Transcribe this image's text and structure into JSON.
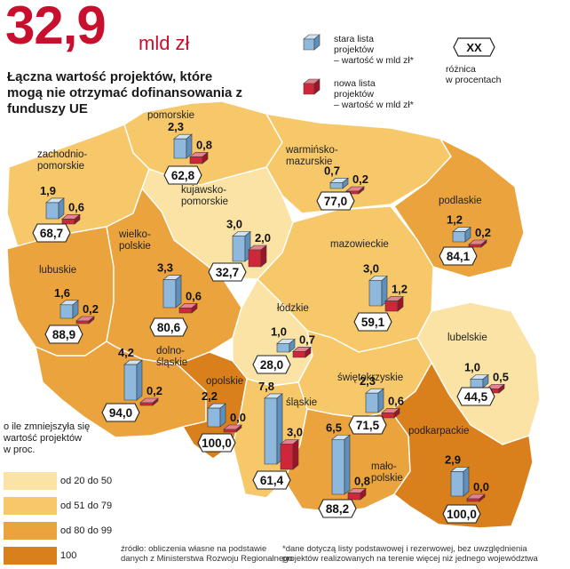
{
  "header": {
    "big_value": "32,9",
    "big_unit": "mld zł",
    "subtitle": "Łączna wartość projektów, które mogą nie otrzymać dofinansowania z funduszy UE"
  },
  "legend": {
    "old_label": "stara lista\nprojektów\n– wartość w mld zł*",
    "new_label": "nowa lista\nprojektów\n– wartość w mld zł*",
    "diff_symbol": "XX",
    "diff_label": "różnica\nw procentach"
  },
  "colors": {
    "old_bar": "#8fb8dd",
    "new_bar": "#d0263a",
    "class_20_50": "#fbe3a5",
    "class_51_79": "#f6c869",
    "class_80_99": "#eaa33d",
    "class_100": "#d9801c"
  },
  "scale": {
    "title": "o ile zmniejszyła się\nwartość projektów\nw proc.",
    "items": [
      {
        "label": "od 20 do 50",
        "color": "#fbe3a5"
      },
      {
        "label": "od 51 do 79",
        "color": "#f6c869"
      },
      {
        "label": "od 80 do 99",
        "color": "#eaa33d"
      },
      {
        "label": "100",
        "color": "#d9801c"
      }
    ]
  },
  "footnotes": {
    "source": "źródło: obliczenia własne na podstawie\ndanych z Ministerstwa Rozwoju Regionalnego",
    "note": "*dane dotyczą listy podstawowej i rezerwowej, bez uwzględnienia\nprojektów realizowanych na terenie więcej niż jednego województwa"
  },
  "chart_data": {
    "type": "bar",
    "title": "32,9 mld zł",
    "subtitle": "Łączna wartość projektów, które mogą nie otrzymać dofinansowania z funduszy UE",
    "series": [
      {
        "name": "stara lista projektów – wartość w mld zł*",
        "values": [
          2.3,
          1.9,
          0.7,
          1.2,
          3.0,
          1.6,
          3.3,
          3.0,
          1.0,
          4.2,
          1.0,
          2.2,
          7.8,
          2.3,
          6.5,
          2.9
        ]
      },
      {
        "name": "nowa lista projektów – wartość w mld zł*",
        "values": [
          0.8,
          0.6,
          0.2,
          0.2,
          2.0,
          0.2,
          0.6,
          1.2,
          0.7,
          0.2,
          0.5,
          0.0,
          3.0,
          0.6,
          0.8,
          0.0
        ]
      }
    ],
    "categories": [
      "pomorskie",
      "zachodnio-pomorskie",
      "warmińsko-mazurskie",
      "podlaskie",
      "kujawsko-pomorskie",
      "lubuskie",
      "wielko-polskie",
      "mazowieckie",
      "łódzkie",
      "dolno-śląskie",
      "lubelskie",
      "opolskie",
      "śląskie",
      "świętokrzyskie",
      "mało-polskie",
      "podkarpackie"
    ],
    "diff_percent": [
      "62,8",
      "68,7",
      "77,0",
      "84,1",
      "32,7",
      "88,9",
      "80,6",
      "59,1",
      "28,0",
      "94,0",
      "44,5",
      "100,0",
      "61,4",
      "71,5",
      "88,2",
      "100,0"
    ],
    "regions": [
      {
        "name": "pomorskie",
        "old": "2,3",
        "new": "0,8",
        "diff": "62,8",
        "class": "class_51_79"
      },
      {
        "name": "zachodnio-pomorskie",
        "old": "1,9",
        "new": "0,6",
        "diff": "68,7",
        "class": "class_51_79"
      },
      {
        "name": "warmińsko-mazurskie",
        "old": "0,7",
        "new": "0,2",
        "diff": "77,0",
        "class": "class_51_79"
      },
      {
        "name": "podlaskie",
        "old": "1,2",
        "new": "0,2",
        "diff": "84,1",
        "class": "class_80_99"
      },
      {
        "name": "kujawsko-pomorskie",
        "old": "3,0",
        "new": "2,0",
        "diff": "32,7",
        "class": "class_20_50"
      },
      {
        "name": "lubuskie",
        "old": "1,6",
        "new": "0,2",
        "diff": "88,9",
        "class": "class_80_99"
      },
      {
        "name": "wielko-polskie",
        "old": "3,3",
        "new": "0,6",
        "diff": "80,6",
        "class": "class_80_99"
      },
      {
        "name": "mazowieckie",
        "old": "3,0",
        "new": "1,2",
        "diff": "59,1",
        "class": "class_51_79"
      },
      {
        "name": "łódzkie",
        "old": "1,0",
        "new": "0,7",
        "diff": "28,0",
        "class": "class_20_50"
      },
      {
        "name": "dolno-śląskie",
        "old": "4,2",
        "new": "0,2",
        "diff": "94,0",
        "class": "class_80_99"
      },
      {
        "name": "lubelskie",
        "old": "1,0",
        "new": "0,5",
        "diff": "44,5",
        "class": "class_20_50"
      },
      {
        "name": "opolskie",
        "old": "2,2",
        "new": "0,0",
        "diff": "100,0",
        "class": "class_100"
      },
      {
        "name": "śląskie",
        "old": "7,8",
        "new": "3,0",
        "diff": "61,4",
        "class": "class_51_79"
      },
      {
        "name": "świętokrzyskie",
        "old": "2,3",
        "new": "0,6",
        "diff": "71,5",
        "class": "class_51_79"
      },
      {
        "name": "mało-polskie",
        "old": "6,5",
        "new": "0,8",
        "diff": "88,2",
        "class": "class_80_99"
      },
      {
        "name": "podkarpackie",
        "old": "2,9",
        "new": "0,0",
        "diff": "100,0",
        "class": "class_100"
      }
    ],
    "legend_placement": "top-right"
  }
}
